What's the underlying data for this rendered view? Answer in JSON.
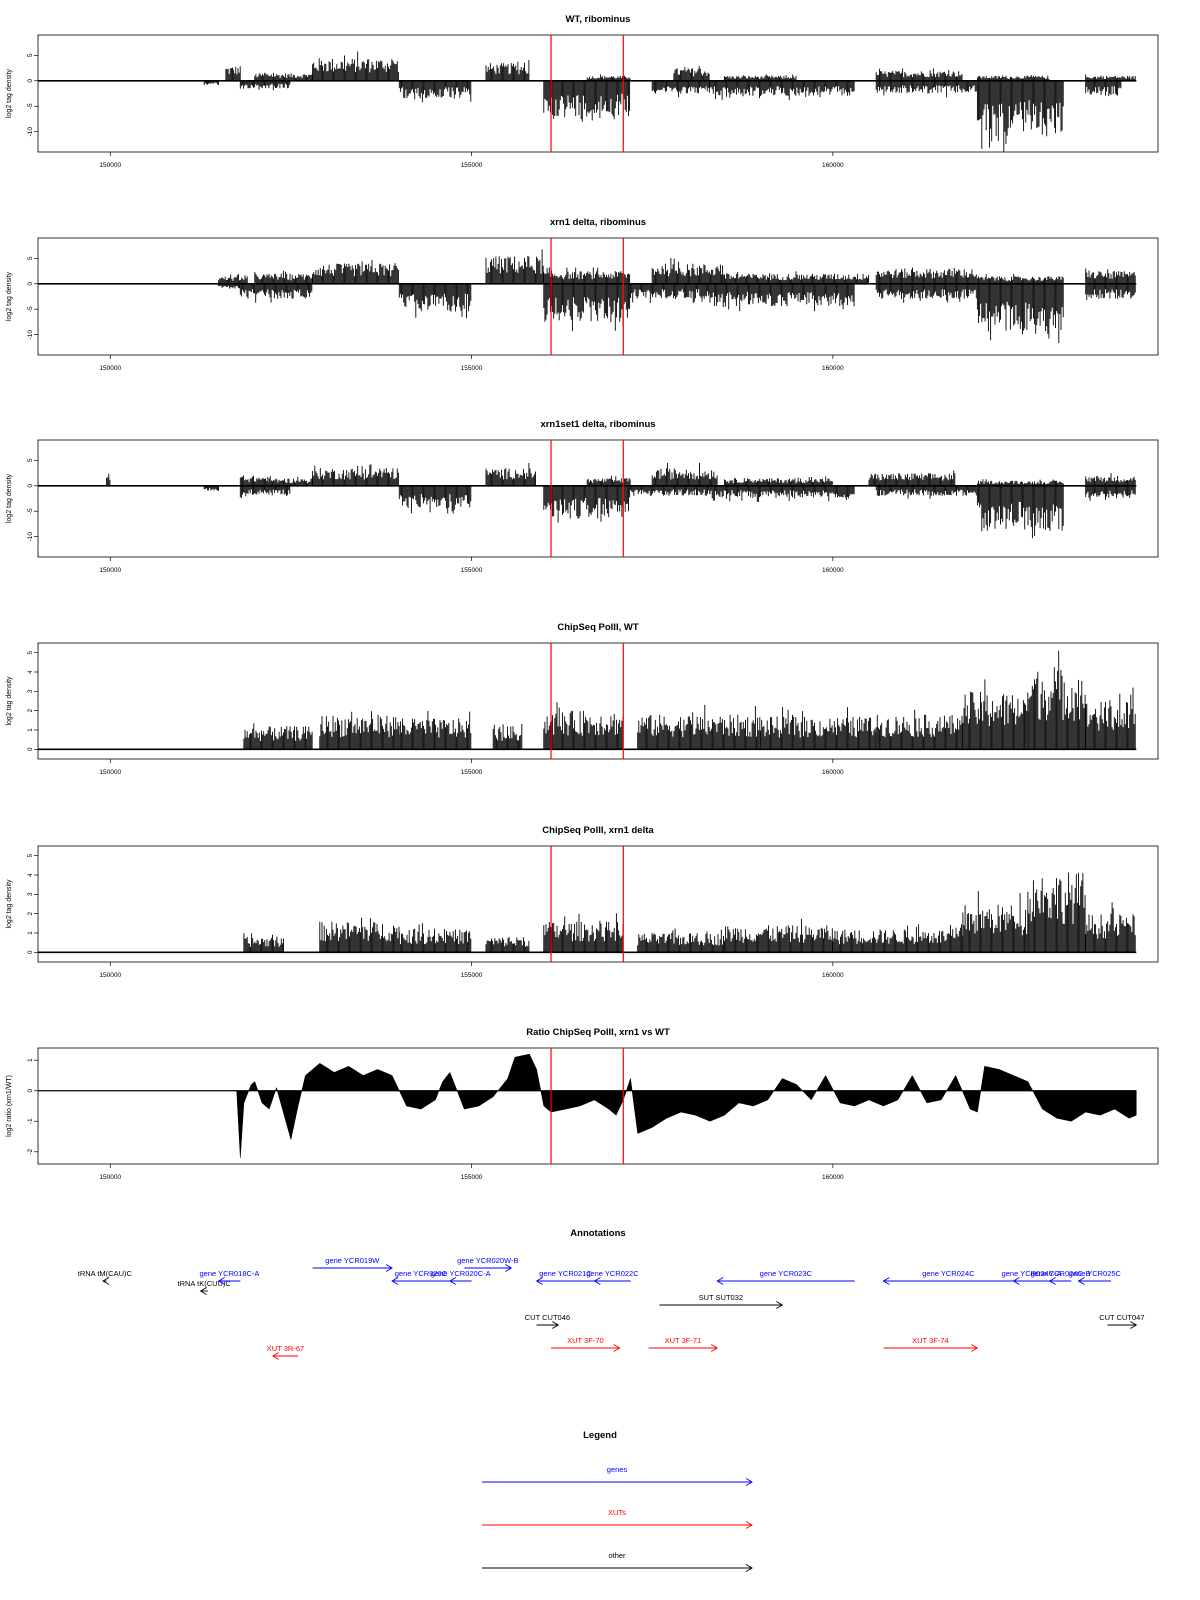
{
  "colors": {
    "genes": "#0000ff",
    "XUTs": "#ff0000",
    "other": "#000000",
    "marker": "#ff0000",
    "signal": "#000000"
  },
  "chart_data": [
    {
      "type": "bar",
      "title": "WT, ribominus",
      "ylabel": "log2 tag density",
      "xlim": [
        149000,
        164500
      ],
      "ylim": [
        -14,
        9
      ],
      "xticks": [
        150000,
        155000,
        160000
      ],
      "yticks": [
        -10,
        -5,
        0,
        5
      ],
      "markers_x": [
        156100,
        157100
      ],
      "signal_start": 151500,
      "pos_segments": [
        [
          151600,
          151800,
          3
        ],
        [
          152000,
          152800,
          1.5
        ],
        [
          152800,
          154000,
          4.5
        ],
        [
          155200,
          155800,
          3.5
        ],
        [
          156600,
          157200,
          1
        ],
        [
          157800,
          158300,
          2.5
        ],
        [
          158500,
          159500,
          1
        ],
        [
          160600,
          161800,
          2
        ],
        [
          162000,
          163000,
          1
        ],
        [
          163500,
          164200,
          1
        ]
      ],
      "neg_segments": [
        [
          151300,
          151500,
          -1
        ],
        [
          151800,
          152500,
          -1.5
        ],
        [
          154000,
          155000,
          -3.5
        ],
        [
          156000,
          157200,
          -7
        ],
        [
          157500,
          158300,
          -2.5
        ],
        [
          158300,
          160300,
          -3
        ],
        [
          160600,
          162000,
          -2.5
        ],
        [
          162000,
          163200,
          -11
        ],
        [
          163500,
          164000,
          -3
        ]
      ]
    },
    {
      "type": "bar",
      "title": "xrn1 delta, ribominus",
      "ylabel": "log2 tag density",
      "xlim": [
        149000,
        164500
      ],
      "ylim": [
        -14,
        9
      ],
      "xticks": [
        150000,
        155000,
        160000
      ],
      "yticks": [
        -10,
        -5,
        0,
        5
      ],
      "markers_x": [
        156100,
        157100
      ],
      "signal_start": 151500,
      "pos_segments": [
        [
          151500,
          151900,
          1.5
        ],
        [
          152000,
          152800,
          2
        ],
        [
          152800,
          154000,
          4
        ],
        [
          155200,
          156000,
          5.5
        ],
        [
          156000,
          157200,
          2.5
        ],
        [
          157500,
          158500,
          4
        ],
        [
          158500,
          160500,
          2
        ],
        [
          160600,
          162000,
          3
        ],
        [
          162000,
          163200,
          1.5
        ],
        [
          163500,
          164200,
          2.5
        ]
      ],
      "neg_segments": [
        [
          151500,
          151800,
          -1
        ],
        [
          151800,
          152800,
          -3
        ],
        [
          154000,
          155000,
          -5.5
        ],
        [
          156000,
          157200,
          -7.5
        ],
        [
          157200,
          158300,
          -3
        ],
        [
          158300,
          160300,
          -4.5
        ],
        [
          160600,
          162000,
          -3
        ],
        [
          162000,
          163200,
          -10
        ],
        [
          163500,
          164200,
          -3
        ]
      ]
    },
    {
      "type": "bar",
      "title": "xrn1set1 delta, ribominus",
      "ylabel": "log2 tag density",
      "xlim": [
        149000,
        164500
      ],
      "ylim": [
        -14,
        9
      ],
      "xticks": [
        150000,
        155000,
        160000
      ],
      "yticks": [
        -10,
        -5,
        0,
        5
      ],
      "markers_x": [
        156100,
        157100
      ],
      "signal_start": 151500,
      "pos_segments": [
        [
          149950,
          150000,
          2
        ],
        [
          151800,
          152200,
          2
        ],
        [
          152200,
          152800,
          1.5
        ],
        [
          152800,
          154000,
          3.5
        ],
        [
          155200,
          155900,
          3.5
        ],
        [
          156600,
          157200,
          1.5
        ],
        [
          157500,
          158400,
          3.5
        ],
        [
          158500,
          160000,
          1.5
        ],
        [
          160500,
          161700,
          2.5
        ],
        [
          162000,
          163200,
          1
        ],
        [
          163500,
          164200,
          2
        ]
      ],
      "neg_segments": [
        [
          151300,
          151500,
          -1
        ],
        [
          151800,
          152500,
          -2
        ],
        [
          154000,
          155000,
          -4.5
        ],
        [
          156000,
          157200,
          -6.5
        ],
        [
          157200,
          158300,
          -2
        ],
        [
          158300,
          160300,
          -2.5
        ],
        [
          160600,
          162000,
          -2
        ],
        [
          162000,
          163200,
          -9
        ],
        [
          163500,
          164200,
          -2.5
        ]
      ]
    },
    {
      "type": "bar",
      "title": "ChipSeq PolII, WT",
      "ylabel": "log2 tag density",
      "xlim": [
        149000,
        164500
      ],
      "ylim": [
        -0.5,
        5.5
      ],
      "xticks": [
        150000,
        155000,
        160000
      ],
      "yticks": [
        0,
        1,
        2,
        3,
        4,
        5
      ],
      "markers_x": [
        156100,
        157100
      ],
      "signal_start": 151850,
      "pos_segments": [
        [
          151850,
          152800,
          1.2
        ],
        [
          152900,
          154000,
          1.8
        ],
        [
          154000,
          155000,
          1.6
        ],
        [
          155300,
          155700,
          1.2
        ],
        [
          156000,
          157100,
          2
        ],
        [
          157300,
          159000,
          1.8
        ],
        [
          159000,
          160600,
          1.7
        ],
        [
          160600,
          161800,
          1.8
        ],
        [
          161800,
          162700,
          3
        ],
        [
          162700,
          163500,
          4.2
        ],
        [
          163500,
          164200,
          2.5
        ]
      ],
      "neg_segments": []
    },
    {
      "type": "bar",
      "title": "ChipSeq PolII, xrn1 delta",
      "ylabel": "log2 tag density",
      "xlim": [
        149000,
        164500
      ],
      "ylim": [
        -0.5,
        5.5
      ],
      "xticks": [
        150000,
        155000,
        160000
      ],
      "yticks": [
        0,
        1,
        2,
        3,
        4,
        5
      ],
      "markers_x": [
        156100,
        157100
      ],
      "signal_start": 151850,
      "pos_segments": [
        [
          151850,
          152400,
          0.8
        ],
        [
          152900,
          154000,
          1.6
        ],
        [
          154000,
          155000,
          1.2
        ],
        [
          155200,
          155800,
          0.8
        ],
        [
          156000,
          157100,
          1.6
        ],
        [
          157300,
          158500,
          1
        ],
        [
          158500,
          160000,
          1.4
        ],
        [
          160000,
          161800,
          1.2
        ],
        [
          161800,
          162700,
          2.5
        ],
        [
          162700,
          163500,
          4.2
        ],
        [
          163500,
          164200,
          2
        ]
      ],
      "neg_segments": []
    },
    {
      "type": "area",
      "title": "Ratio ChipSeq PolII, xrn1 vs WT",
      "ylabel": "log2 ratio (xrn1/WT)",
      "xlim": [
        149000,
        164500
      ],
      "ylim": [
        -2.4,
        1.4
      ],
      "xticks": [
        150000,
        155000,
        160000
      ],
      "yticks": [
        -2.0,
        -1.0,
        0.0,
        1.0
      ],
      "markers_x": [
        156100,
        157100
      ],
      "x": [
        149000,
        151750,
        151800,
        151850,
        151950,
        152000,
        152100,
        152200,
        152300,
        152500,
        152600,
        152700,
        152900,
        153100,
        153300,
        153500,
        153700,
        153900,
        154100,
        154300,
        154500,
        154600,
        154700,
        154900,
        155100,
        155300,
        155500,
        155600,
        155800,
        155900,
        156000,
        156100,
        156300,
        156500,
        156700,
        156900,
        157000,
        157100,
        157200,
        157300,
        157500,
        157700,
        157900,
        158100,
        158300,
        158500,
        158700,
        158900,
        159100,
        159300,
        159500,
        159700,
        159900,
        160100,
        160300,
        160500,
        160700,
        160900,
        161100,
        161300,
        161500,
        161700,
        161900,
        162000,
        162100,
        162300,
        162500,
        162700,
        162900,
        163100,
        163300,
        163500,
        163700,
        163900,
        164100,
        164200
      ],
      "y": [
        0,
        0,
        -2.2,
        -0.4,
        0.2,
        0.3,
        -0.4,
        -0.6,
        0.1,
        -1.6,
        -0.5,
        0.5,
        0.9,
        0.6,
        0.8,
        0.5,
        0.7,
        0.5,
        -0.5,
        -0.6,
        -0.3,
        0.3,
        0.6,
        -0.6,
        -0.5,
        -0.2,
        0.4,
        1.1,
        1.2,
        0.7,
        -0.5,
        -0.7,
        -0.6,
        -0.5,
        -0.3,
        -0.6,
        -0.8,
        -0.3,
        0.4,
        -1.4,
        -1.2,
        -0.9,
        -0.7,
        -0.8,
        -1.0,
        -0.8,
        -0.4,
        -0.5,
        -0.3,
        0.4,
        0.2,
        -0.3,
        0.5,
        -0.4,
        -0.5,
        -0.3,
        -0.5,
        -0.3,
        0.5,
        -0.4,
        -0.3,
        0.5,
        -0.6,
        -0.7,
        0.8,
        0.7,
        0.5,
        0.3,
        -0.6,
        -0.9,
        -1.0,
        -0.7,
        -0.8,
        -0.6,
        -0.9,
        -0.8
      ]
    },
    {
      "type": "table",
      "title": "Annotations",
      "xlim": [
        149000,
        164500
      ],
      "features": [
        {
          "label": "tRNA tM(CAU)C",
          "type": "other",
          "start": 149950,
          "end": 149900,
          "row": 1
        },
        {
          "label": "tRNA tK(CUU)C",
          "type": "other",
          "start": 151350,
          "end": 151250,
          "row": 2
        },
        {
          "label": "gene YCR018C-A",
          "type": "genes",
          "start": 151800,
          "end": 151500,
          "row": 1
        },
        {
          "label": "gene YCR019W",
          "type": "genes",
          "start": 152800,
          "end": 153900,
          "row": 0
        },
        {
          "label": "gene YCR020C",
          "type": "genes",
          "start": 154700,
          "end": 153900,
          "row": 1
        },
        {
          "label": "gene YCR020C-A",
          "type": "genes",
          "start": 155000,
          "end": 154700,
          "row": 1
        },
        {
          "label": "gene YCR020W-B",
          "type": "genes",
          "start": 154900,
          "end": 155550,
          "row": 0
        },
        {
          "label": "gene YCR021C",
          "type": "genes",
          "start": 156700,
          "end": 155900,
          "row": 1
        },
        {
          "label": "gene YCR022C",
          "type": "genes",
          "start": 157200,
          "end": 156700,
          "row": 1
        },
        {
          "label": "gene YCR023C",
          "type": "genes",
          "start": 160300,
          "end": 158400,
          "row": 1
        },
        {
          "label": "gene YCR024C",
          "type": "genes",
          "start": 162500,
          "end": 160700,
          "row": 1
        },
        {
          "label": "gene YCR024C-A",
          "type": "genes",
          "start": 163000,
          "end": 162500,
          "row": 1
        },
        {
          "label": "gene YCR024C-B",
          "type": "genes",
          "start": 163300,
          "end": 163000,
          "row": 1
        },
        {
          "label": "gene YCR025C",
          "type": "genes",
          "start": 163850,
          "end": 163400,
          "row": 1
        },
        {
          "label": "SUT SUT032",
          "type": "other",
          "start": 157600,
          "end": 159300,
          "row": 3
        },
        {
          "label": "CUT CUT046",
          "type": "other",
          "start": 155900,
          "end": 156200,
          "row": 4
        },
        {
          "label": "CUT CUT047",
          "type": "other",
          "start": 163800,
          "end": 164200,
          "row": 4
        },
        {
          "label": "XUT 3F-70",
          "type": "XUTs",
          "start": 156100,
          "end": 157050,
          "row": 5
        },
        {
          "label": "XUT 3F-71",
          "type": "XUTs",
          "start": 157450,
          "end": 158400,
          "row": 5
        },
        {
          "label": "XUT 3F-74",
          "type": "XUTs",
          "start": 160700,
          "end": 162000,
          "row": 5
        },
        {
          "label": "XUT 3R-67",
          "type": "XUTs",
          "start": 152600,
          "end": 152250,
          "row": 6
        }
      ]
    },
    {
      "type": "table",
      "title": "Legend",
      "items": [
        {
          "label": "genes",
          "type": "genes"
        },
        {
          "label": "XUTs",
          "type": "XUTs"
        },
        {
          "label": "other",
          "type": "other"
        }
      ]
    }
  ]
}
